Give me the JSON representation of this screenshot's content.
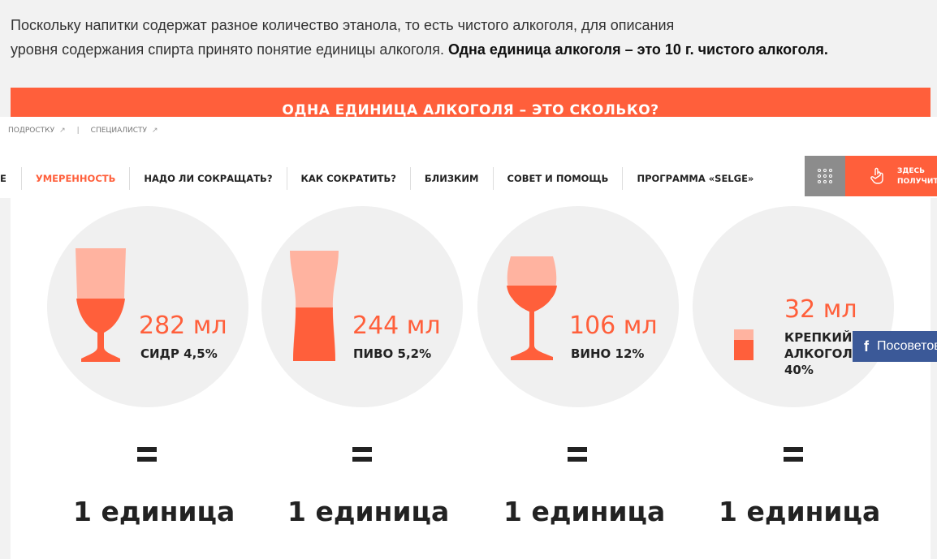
{
  "intro": {
    "line1": "Поскольку напитки содержат разное количество этанола, то есть чистого алкоголя, для описания",
    "line2": "уровня содержания спирта принято понятие единицы алкоголя. ",
    "line2_bold": "Одна единица алкоголя – это 10 г. чистого алкоголя."
  },
  "banner": {
    "title": "ОДНА ЕДИНИЦА АЛКОГОЛЯ – ЭТО СКОЛЬКО?"
  },
  "header": {
    "toplinks": [
      "ПОДРОСТКУ",
      "СПЕЦИАЛИСТУ"
    ],
    "separator": "|",
    "nav_partial": "Е",
    "nav": [
      "УМЕРЕННОСТЬ",
      "НАДО ЛИ СОКРАЩАТЬ?",
      "КАК СОКРАТИТЬ?",
      "БЛИЗКИМ",
      "СОВЕТ И ПОМОЩЬ",
      "ПРОГРАММА «SELGE»"
    ],
    "active_nav": "УМЕРЕННОСТЬ",
    "help_line1": "ЗДЕСЬ",
    "help_line2": "ПОЛУЧИТ"
  },
  "drinks": [
    {
      "amount": "282 мл",
      "name": "СИДР 4,5%",
      "glass": "goblet-icon",
      "fill": 0.45
    },
    {
      "amount": "244 мл",
      "name": "ПИВО 5,2%",
      "glass": "beer-glass-icon",
      "fill": 0.48
    },
    {
      "amount": "106 мл",
      "name": "ВИНО 12%",
      "glass": "wine-glass-icon",
      "fill": 0.3
    },
    {
      "amount": "32 мл",
      "name_line1": "КРЕПКИЙ",
      "name_line2": "АЛКОГОЛЬ",
      "name_line3": "40%",
      "glass": "shot-glass-icon",
      "fill": 0.65
    }
  ],
  "equals": "=",
  "unit_label": "1 единица",
  "social": {
    "facebook_label": "Посоветовать"
  },
  "colors": {
    "accent": "#ff5f3b",
    "accent_light": "#ffb3a0",
    "circle": "#f0f0f0",
    "facebook": "#3b5998"
  }
}
